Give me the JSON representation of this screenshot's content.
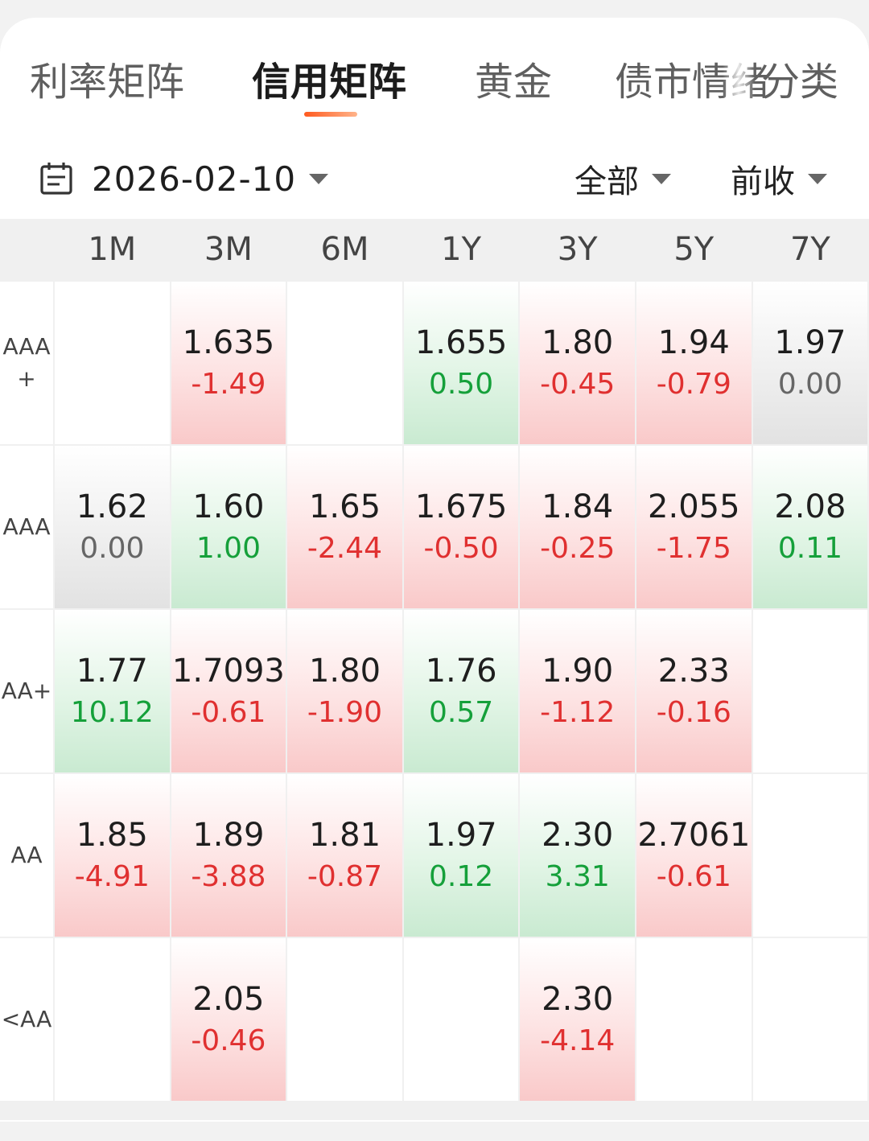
{
  "tabs": [
    {
      "label": "利率矩阵",
      "active": false
    },
    {
      "label": "信用矩阵",
      "active": true
    },
    {
      "label": "黄金",
      "active": false
    },
    {
      "label": "债市情绪",
      "active": false
    },
    {
      "label": "分类",
      "active": false
    }
  ],
  "filters": {
    "date": "2026-02-10",
    "scope": "全部",
    "compare": "前收"
  },
  "icons": {
    "date": "calendar-icon",
    "dropdown": "caret-down-icon"
  },
  "colors": {
    "up": "#15a03a",
    "down": "#e03030",
    "flat": "#666666",
    "accent": "#ff5a1f"
  },
  "matrix": {
    "columns": [
      "1M",
      "3M",
      "6M",
      "1Y",
      "3Y",
      "5Y",
      "7Y"
    ],
    "rows": [
      {
        "label": "AAA\n+",
        "cells": [
          null,
          {
            "value": "1.635",
            "change": "-1.49",
            "trend": "down"
          },
          null,
          {
            "value": "1.655",
            "change": "0.50",
            "trend": "up"
          },
          {
            "value": "1.80",
            "change": "-0.45",
            "trend": "down"
          },
          {
            "value": "1.94",
            "change": "-0.79",
            "trend": "down"
          },
          {
            "value": "1.97",
            "change": "0.00",
            "trend": "flat"
          }
        ]
      },
      {
        "label": "AAA",
        "cells": [
          {
            "value": "1.62",
            "change": "0.00",
            "trend": "flat"
          },
          {
            "value": "1.60",
            "change": "1.00",
            "trend": "up"
          },
          {
            "value": "1.65",
            "change": "-2.44",
            "trend": "down"
          },
          {
            "value": "1.675",
            "change": "-0.50",
            "trend": "down"
          },
          {
            "value": "1.84",
            "change": "-0.25",
            "trend": "down"
          },
          {
            "value": "2.055",
            "change": "-1.75",
            "trend": "down"
          },
          {
            "value": "2.08",
            "change": "0.11",
            "trend": "up"
          }
        ]
      },
      {
        "label": "AA+",
        "cells": [
          {
            "value": "1.77",
            "change": "10.12",
            "trend": "up"
          },
          {
            "value": "1.7093",
            "change": "-0.61",
            "trend": "down"
          },
          {
            "value": "1.80",
            "change": "-1.90",
            "trend": "down"
          },
          {
            "value": "1.76",
            "change": "0.57",
            "trend": "up"
          },
          {
            "value": "1.90",
            "change": "-1.12",
            "trend": "down"
          },
          {
            "value": "2.33",
            "change": "-0.16",
            "trend": "down"
          },
          null
        ]
      },
      {
        "label": "AA",
        "cells": [
          {
            "value": "1.85",
            "change": "-4.91",
            "trend": "down"
          },
          {
            "value": "1.89",
            "change": "-3.88",
            "trend": "down"
          },
          {
            "value": "1.81",
            "change": "-0.87",
            "trend": "down"
          },
          {
            "value": "1.97",
            "change": "0.12",
            "trend": "up"
          },
          {
            "value": "2.30",
            "change": "3.31",
            "trend": "up"
          },
          {
            "value": "2.7061",
            "change": "-0.61",
            "trend": "down"
          },
          null
        ]
      },
      {
        "label": "<AA",
        "cells": [
          null,
          {
            "value": "2.05",
            "change": "-0.46",
            "trend": "down"
          },
          null,
          null,
          {
            "value": "2.30",
            "change": "-4.14",
            "trend": "down"
          },
          null,
          null
        ]
      }
    ]
  }
}
